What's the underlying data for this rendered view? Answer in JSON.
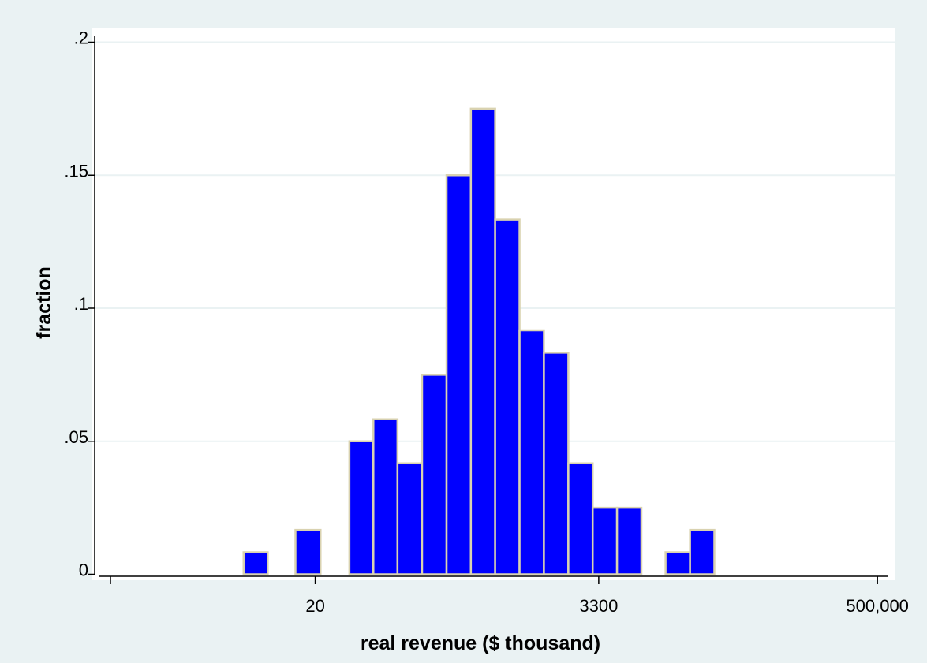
{
  "chart_data": {
    "type": "bar",
    "subtype": "histogram",
    "xlabel": "real revenue ($ thousand)",
    "ylabel": "fraction",
    "ylim": [
      0,
      0.2
    ],
    "y_ticks": [
      {
        "value": 0,
        "label": "0"
      },
      {
        "value": 0.05,
        "label": ".05"
      },
      {
        "value": 0.1,
        "label": ".1"
      },
      {
        "value": 0.15,
        "label": ".15"
      },
      {
        "value": 0.2,
        "label": ".2"
      }
    ],
    "x_scale": "log",
    "xlim": [
      0.5,
      600000
    ],
    "x_ticks": [
      {
        "value": 20,
        "label": "20"
      },
      {
        "value": 3300,
        "label": "3300"
      },
      {
        "value": 500000,
        "label": "500,000"
      }
    ],
    "bins": [
      {
        "x0": 5.5,
        "x1": 8.5,
        "value": 0.0083
      },
      {
        "x0": 14,
        "x1": 22,
        "value": 0.0167
      },
      {
        "x0": 37,
        "x1": 57,
        "value": 0.05
      },
      {
        "x0": 57,
        "x1": 88,
        "value": 0.0583
      },
      {
        "x0": 88,
        "x1": 137,
        "value": 0.0417
      },
      {
        "x0": 137,
        "x1": 213,
        "value": 0.075
      },
      {
        "x0": 213,
        "x1": 330,
        "value": 0.15
      },
      {
        "x0": 330,
        "x1": 511,
        "value": 0.175
      },
      {
        "x0": 511,
        "x1": 793,
        "value": 0.1333
      },
      {
        "x0": 793,
        "x1": 1230,
        "value": 0.0917
      },
      {
        "x0": 1230,
        "x1": 1910,
        "value": 0.0833
      },
      {
        "x0": 1910,
        "x1": 2960,
        "value": 0.0417
      },
      {
        "x0": 2960,
        "x1": 4590,
        "value": 0.025
      },
      {
        "x0": 4590,
        "x1": 7120,
        "value": 0.025
      },
      {
        "x0": 11000,
        "x1": 17100,
        "value": 0.0083
      },
      {
        "x0": 17100,
        "x1": 26500,
        "value": 0.0167
      }
    ],
    "grid": true,
    "bar_color": "#0000ff",
    "bar_edge_color": "#d9d2b0",
    "background_color": "#eaf2f3",
    "plot_background_color": "#ffffff",
    "grid_color": "#eaf2f3"
  }
}
